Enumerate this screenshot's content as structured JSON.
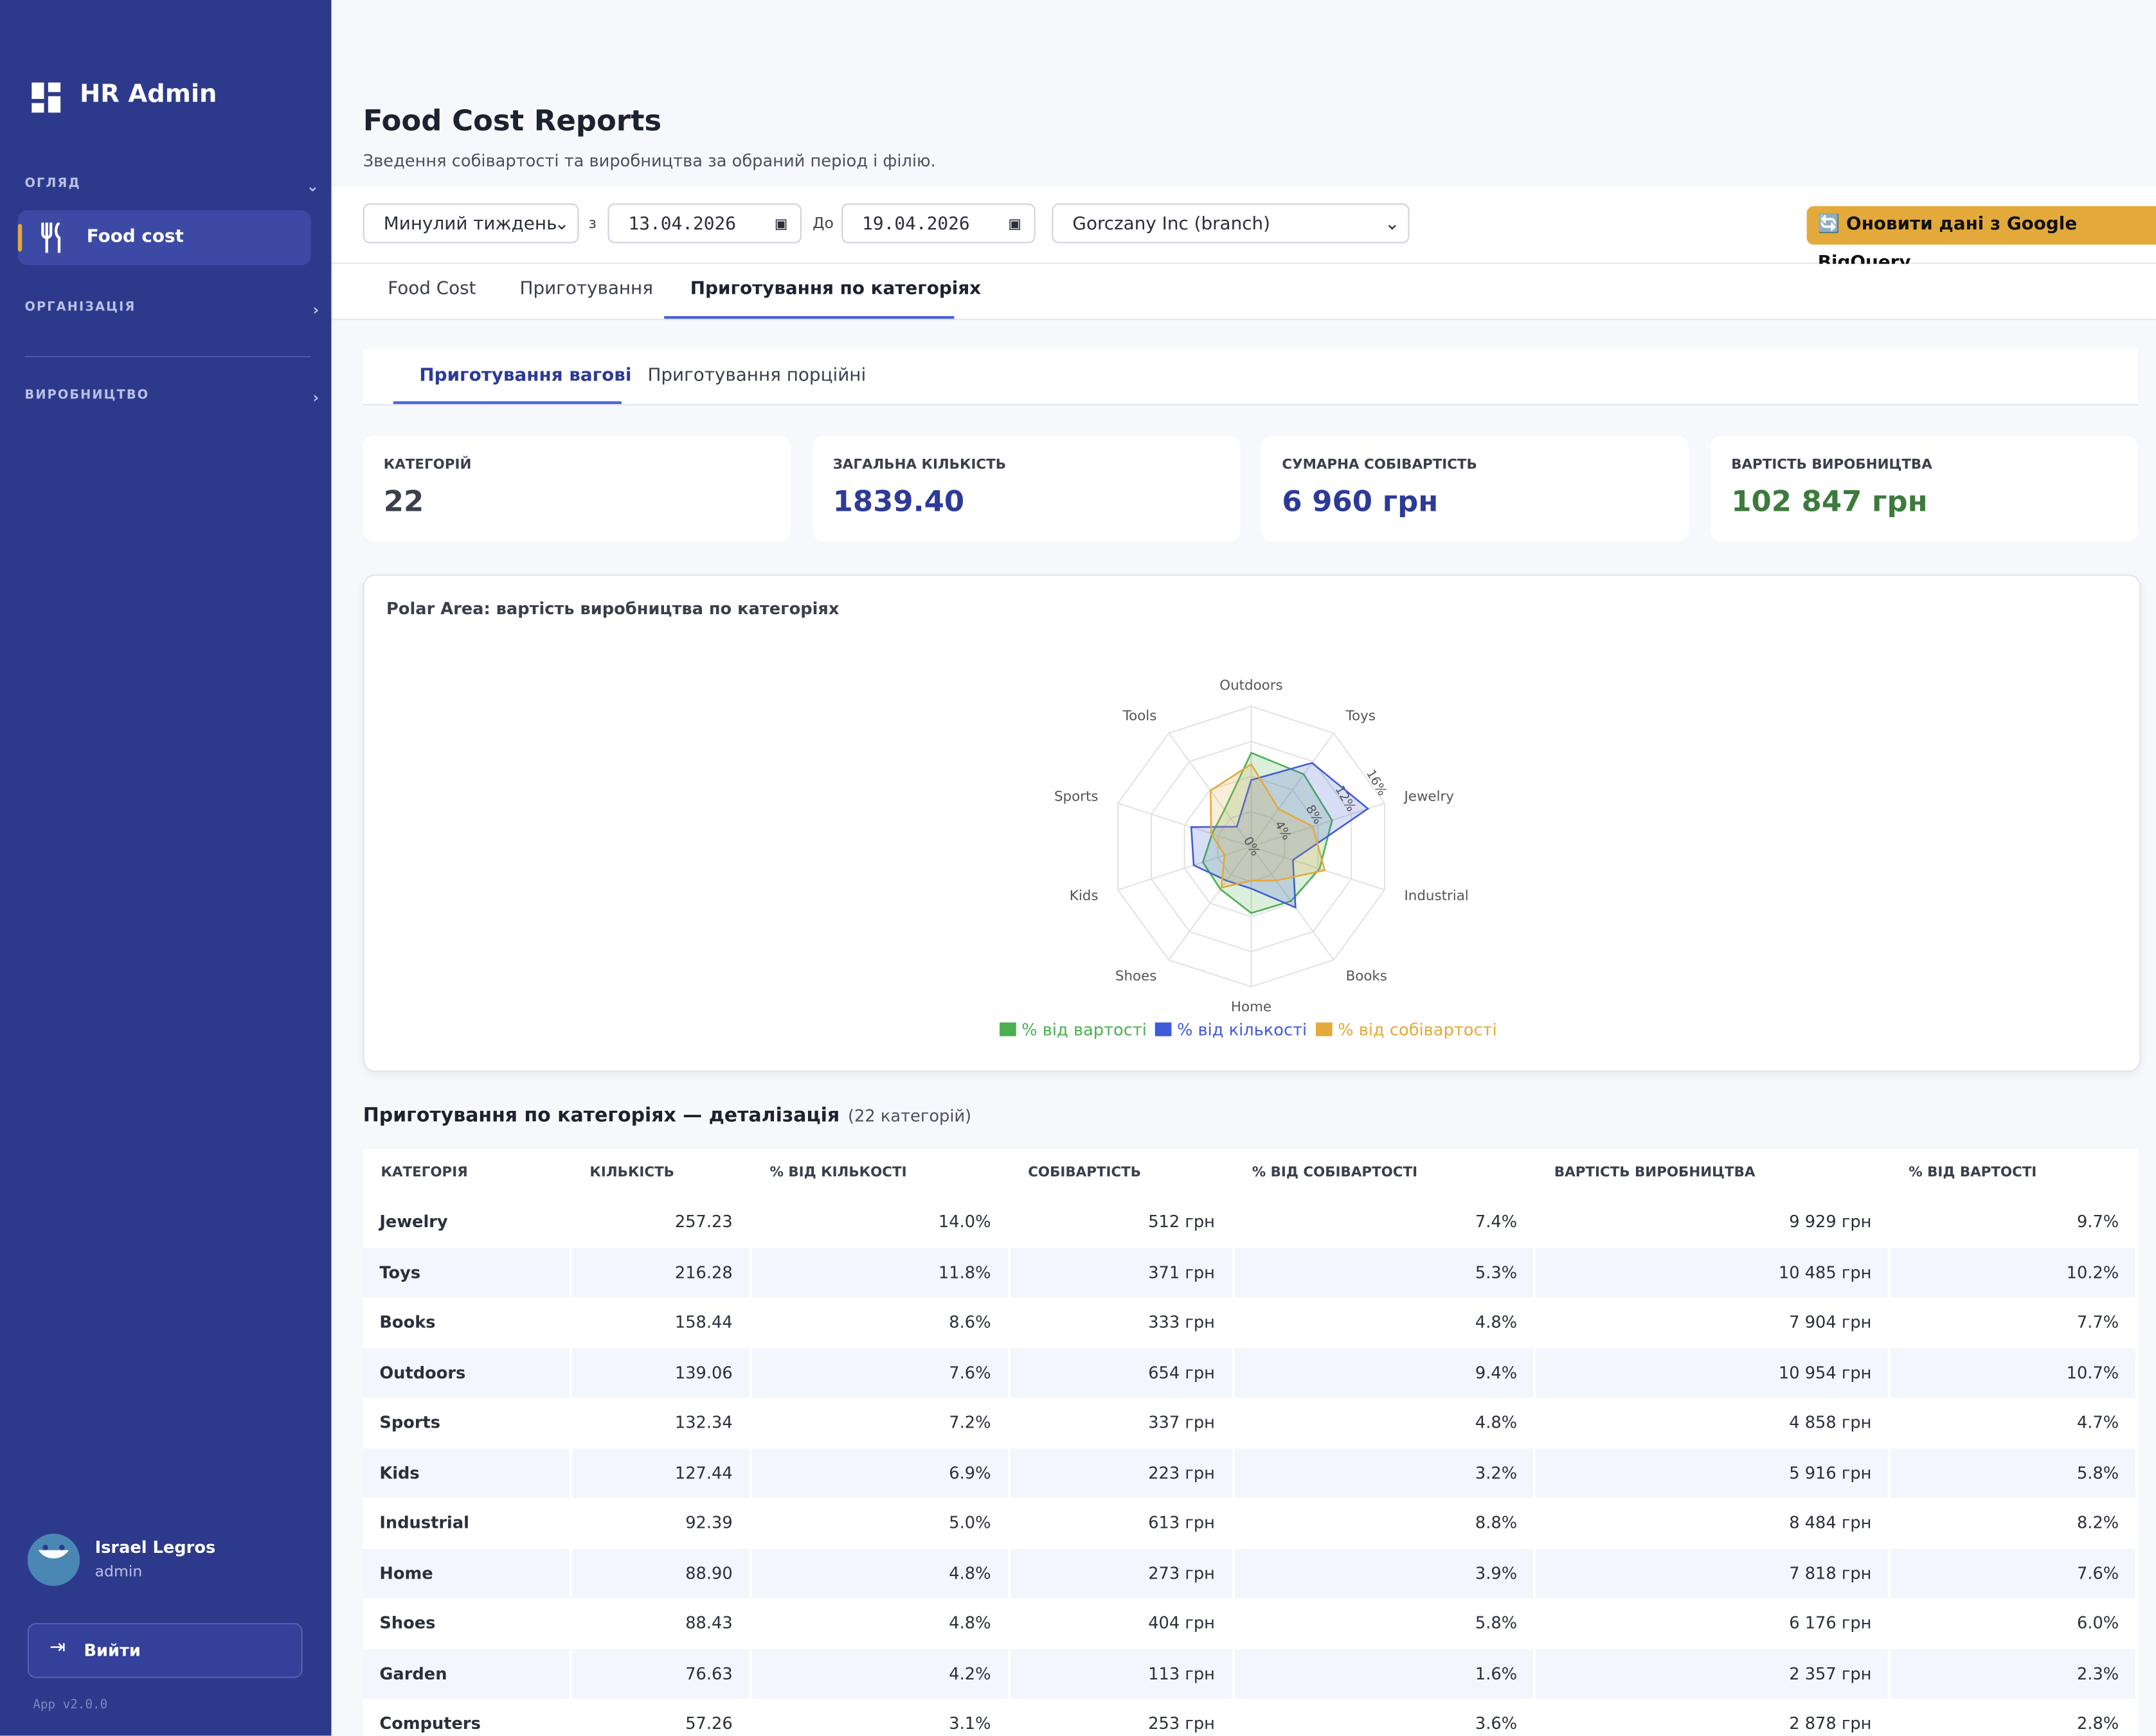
{
  "sidebar": {
    "brand": "HR Admin",
    "sections": [
      "ОГЛЯД",
      "ОРГАНІЗАЦІЯ",
      "ВИРОБНИЦТВО"
    ],
    "active_item": "Food cost",
    "user": {
      "name": "Israel Legros",
      "role": "admin"
    },
    "logout": "Вийти",
    "version": "App v2.0.0"
  },
  "header": {
    "title": "Food Cost Reports",
    "subtitle": "Зведення собівартості та виробництва за обраний період і філію."
  },
  "filters": {
    "period": "Минулий тиждень",
    "from_label": "з",
    "from": "13.04.2026",
    "to_label": "До",
    "to": "19.04.2026",
    "branch": "Gorczany Inc (branch)",
    "refresh": "🔄 Оновити дані з Google BigQuery"
  },
  "tabs": [
    "Food Cost",
    "Приготування",
    "Приготування по категоріях"
  ],
  "subtabs": [
    "Приготування вагові",
    "Приготування порційні"
  ],
  "stats": [
    {
      "label": "КАТЕГОРІЙ",
      "value": "22"
    },
    {
      "label": "ЗАГАЛЬНА КІЛЬКІСТЬ",
      "value": "1839.40"
    },
    {
      "label": "СУМАРНА СОБІВАРТІСТЬ",
      "value": "6 960 грн"
    },
    {
      "label": "ВАРТІСТЬ ВИРОБНИЦТВА",
      "value": "102 847 грн"
    }
  ],
  "chart_data": {
    "type": "radar",
    "title": "Polar Area: вартість виробництва по категоріях",
    "categories": [
      "Outdoors",
      "Toys",
      "Jewelry",
      "Industrial",
      "Books",
      "Home",
      "Shoes",
      "Kids",
      "Sports",
      "Tools"
    ],
    "series": [
      {
        "name": "% від вартості",
        "color": "#4caf50",
        "values": [
          10.7,
          10.2,
          9.7,
          8.2,
          7.7,
          7.6,
          6.0,
          5.8,
          4.7,
          5.2
        ]
      },
      {
        "name": "% від кількості",
        "color": "#3f5bd9",
        "values": [
          7.6,
          11.8,
          14.0,
          5.0,
          8.6,
          4.8,
          4.8,
          6.9,
          7.2,
          2.8
        ]
      },
      {
        "name": "% від собівартості",
        "color": "#e3a93a",
        "values": [
          9.4,
          5.3,
          7.4,
          8.8,
          4.8,
          3.9,
          5.8,
          3.2,
          4.8,
          7.9
        ]
      }
    ],
    "rlim": [
      0,
      16
    ],
    "rticks": [
      {
        "value": 0,
        "label": "0%"
      },
      {
        "value": 4,
        "label": "4%"
      },
      {
        "value": 8,
        "label": "8%"
      },
      {
        "value": 12,
        "label": "12%"
      },
      {
        "value": 16,
        "label": "16%"
      }
    ],
    "grid": true,
    "legend": "bottom"
  },
  "table": {
    "title": "Приготування по категоріях — деталізація",
    "count": "(22 категорій)",
    "columns": [
      "КАТЕГОРІЯ",
      "КІЛЬКІСТЬ",
      "% ВІД КІЛЬКОСТІ",
      "СОБІВАРТІСТЬ",
      "% ВІД СОБІВАРТОСТІ",
      "ВАРТІСТЬ ВИРОБНИЦТВА",
      "% ВІД ВАРТОСТІ"
    ],
    "rows": [
      [
        "Jewelry",
        "257.23",
        "14.0%",
        "512 грн",
        "7.4%",
        "9 929 грн",
        "9.7%"
      ],
      [
        "Toys",
        "216.28",
        "11.8%",
        "371 грн",
        "5.3%",
        "10 485 грн",
        "10.2%"
      ],
      [
        "Books",
        "158.44",
        "8.6%",
        "333 грн",
        "4.8%",
        "7 904 грн",
        "7.7%"
      ],
      [
        "Outdoors",
        "139.06",
        "7.6%",
        "654 грн",
        "9.4%",
        "10 954 грн",
        "10.7%"
      ],
      [
        "Sports",
        "132.34",
        "7.2%",
        "337 грн",
        "4.8%",
        "4 858 грн",
        "4.7%"
      ],
      [
        "Kids",
        "127.44",
        "6.9%",
        "223 грн",
        "3.2%",
        "5 916 грн",
        "5.8%"
      ],
      [
        "Industrial",
        "92.39",
        "5.0%",
        "613 грн",
        "8.8%",
        "8 484 грн",
        "8.2%"
      ],
      [
        "Home",
        "88.90",
        "4.8%",
        "273 грн",
        "3.9%",
        "7 818 грн",
        "7.6%"
      ],
      [
        "Shoes",
        "88.43",
        "4.8%",
        "404 грн",
        "5.8%",
        "6 176 грн",
        "6.0%"
      ],
      [
        "Garden",
        "76.63",
        "4.2%",
        "113 грн",
        "1.6%",
        "2 357 грн",
        "2.3%"
      ],
      [
        "Computers",
        "57.26",
        "3.1%",
        "253 грн",
        "3.6%",
        "2 878 грн",
        "2.8%"
      ]
    ]
  }
}
